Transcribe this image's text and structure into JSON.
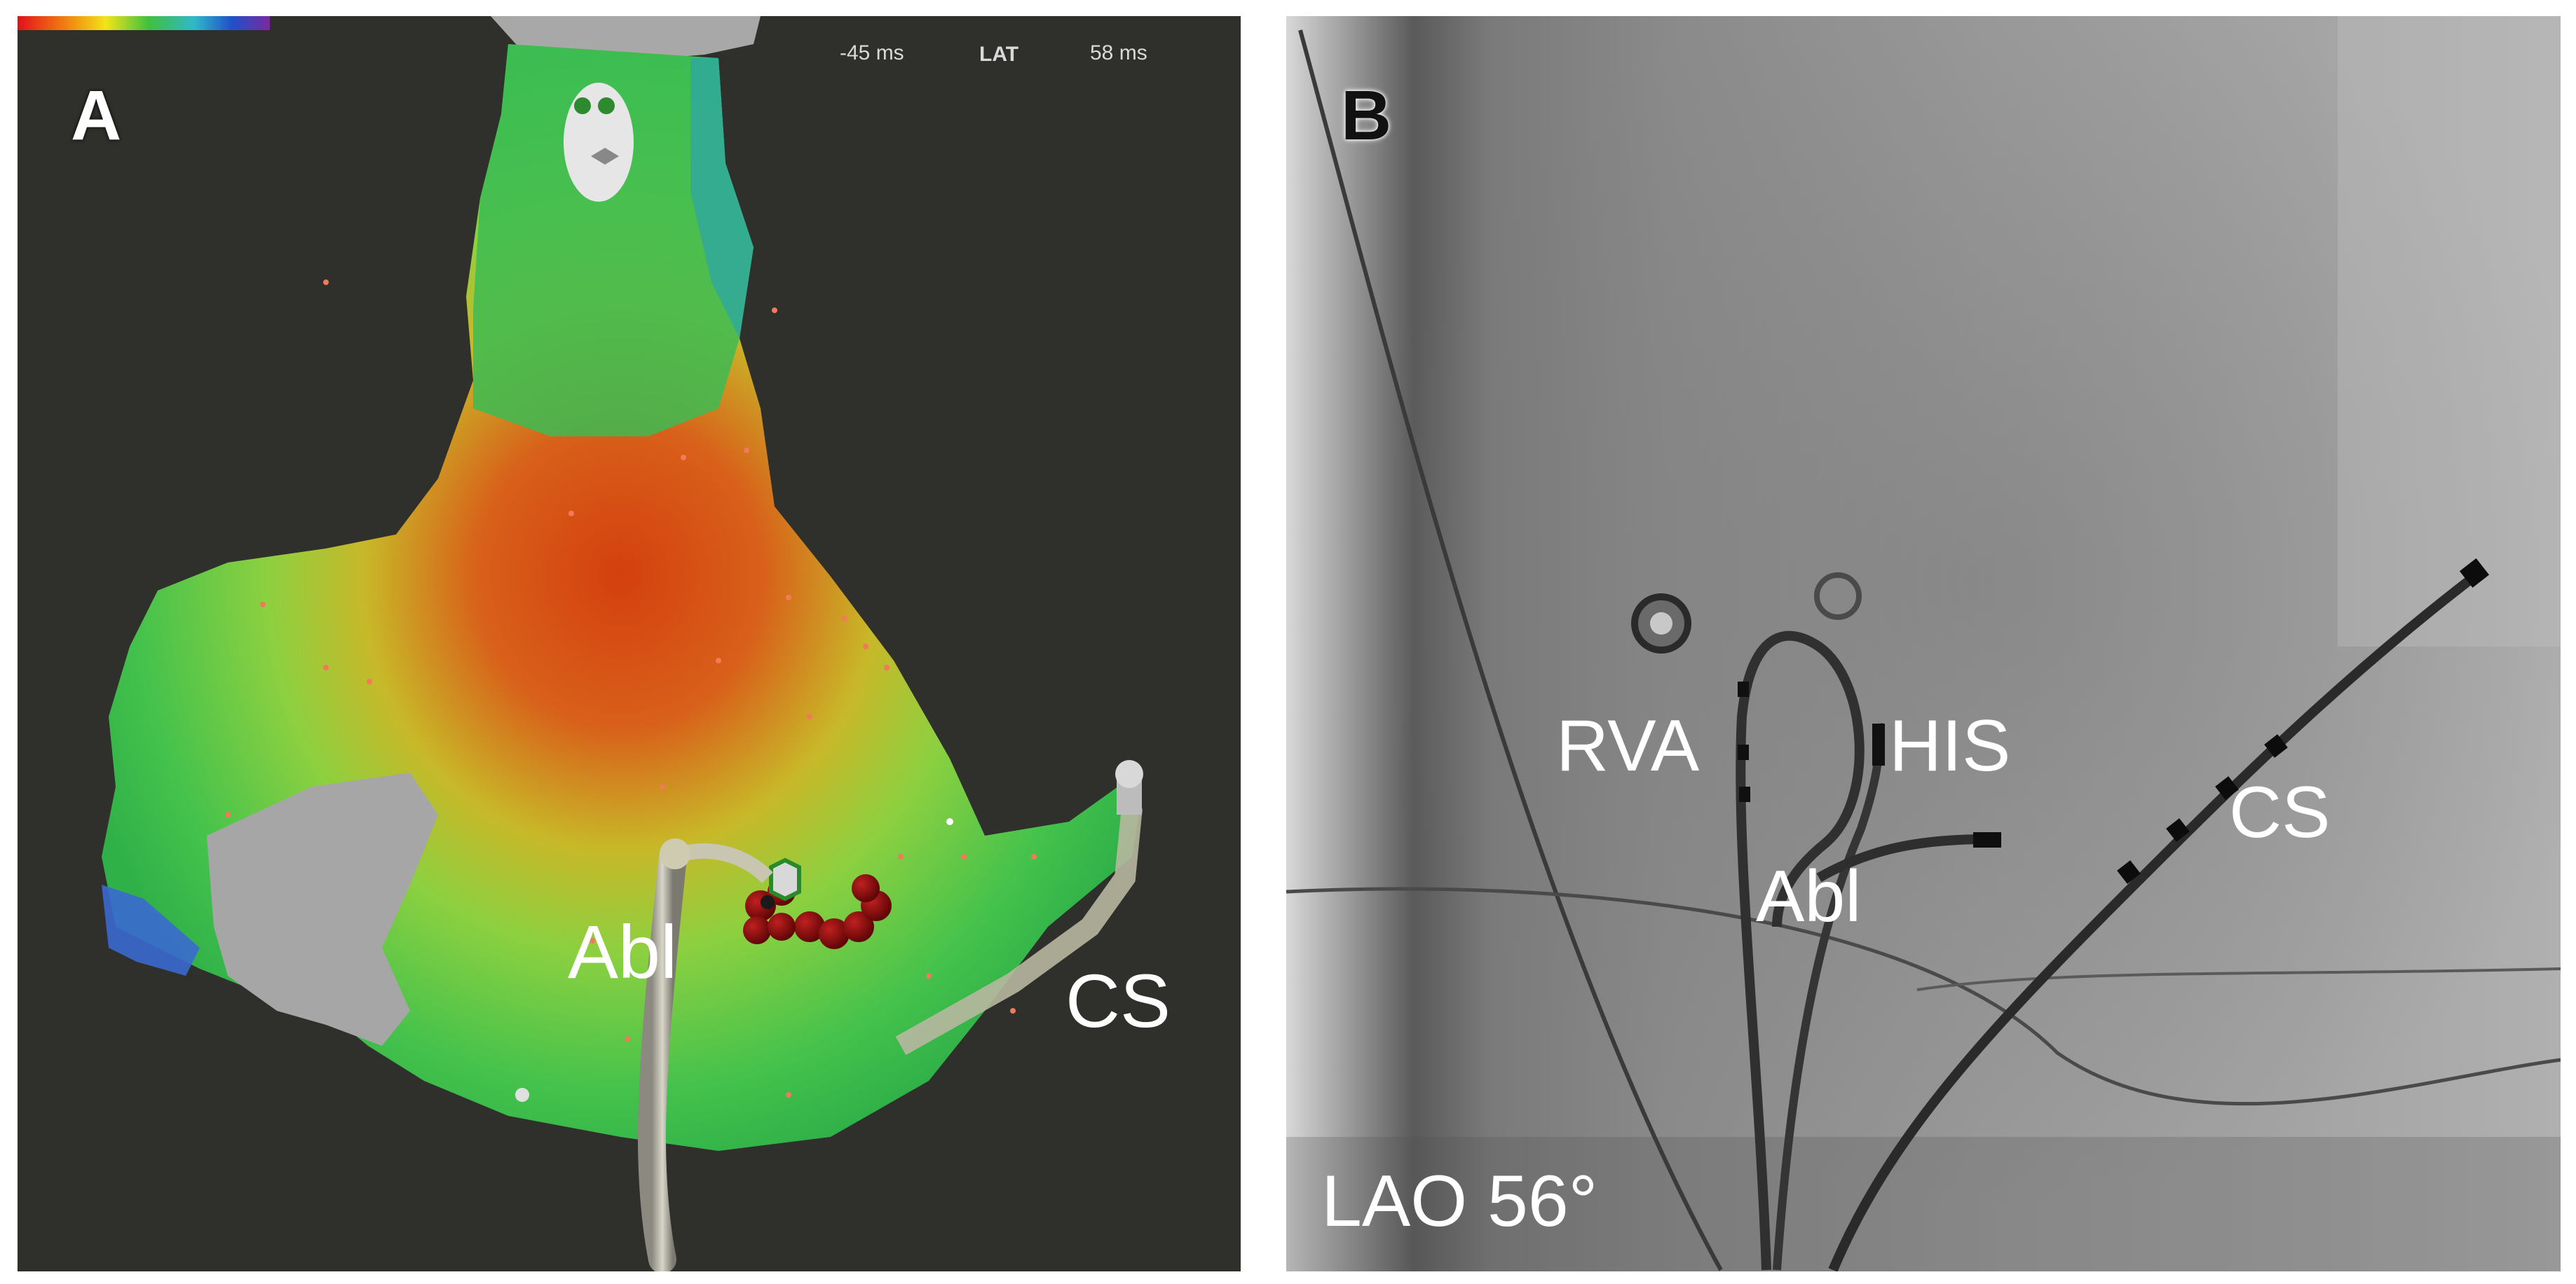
{
  "panel_a": {
    "letter": "A",
    "legend": {
      "min_label": "-45 ms",
      "title": "LAT",
      "max_label": "58 ms"
    },
    "labels": {
      "abl": "Abl",
      "cs": "CS"
    },
    "colors": {
      "background": "#2f302b",
      "early": "#d02a10",
      "mid": "#e8d820",
      "late": "#3ec04a",
      "latest": "#6a2a9a",
      "lesion": "#7a0a0a"
    }
  },
  "panel_b": {
    "letter": "B",
    "labels": {
      "rva": "RVA",
      "his": "HIS",
      "abl": "Abl",
      "cs": "CS",
      "view": "LAO 56°"
    }
  }
}
